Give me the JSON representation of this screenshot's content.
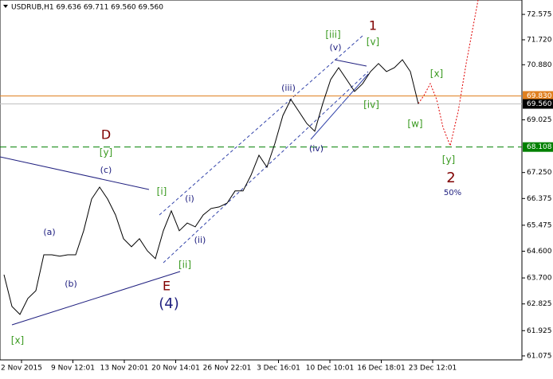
{
  "chart_data": {
    "type": "line",
    "title": "USDRUB,H1  69.636 69.711 69.560 69.560",
    "x_labels": [
      "2 Nov 2015",
      "9 Nov 12:01",
      "13 Nov 20:01",
      "20 Nov 14:01",
      "26 Nov 22:01",
      "3 Dec 16:01",
      "10 Dec 10:01",
      "16 Dec 18:01",
      "23 Dec 12:01"
    ],
    "values": [
      63.81,
      62.74,
      62.47,
      63.01,
      63.27,
      64.48,
      64.48,
      64.43,
      64.48,
      64.48,
      65.29,
      66.36,
      66.76,
      66.36,
      65.82,
      65.02,
      64.75,
      65.02,
      64.61,
      64.35,
      65.29,
      65.96,
      65.29,
      65.55,
      65.42,
      65.82,
      66.04,
      66.09,
      66.22,
      66.63,
      66.63,
      67.16,
      67.83,
      67.43,
      68.23,
      69.17,
      69.71,
      69.31,
      68.9,
      68.64,
      69.57,
      70.38,
      70.78,
      70.38,
      69.98,
      70.24,
      70.65,
      70.92,
      70.65,
      70.78,
      71.05,
      70.65,
      69.56
    ],
    "color": "#000000",
    "ylim": [
      60.94,
      73.06
    ],
    "yticks": [
      72.575,
      {
        "value": 71.72,
        "label": "71.720"
      },
      {
        "value": 70.88,
        "label": "70.880"
      },
      69.025,
      {
        "value": 67.25,
        "label": "67.250"
      },
      66.375,
      65.475,
      {
        "value": 64.6,
        "label": "64.600"
      },
      {
        "value": 63.7,
        "label": "63.700"
      },
      62.825,
      61.925,
      61.075
    ],
    "levels": [
      {
        "value": 69.83,
        "label": "69.830",
        "color": "#e08020"
      },
      {
        "value": 69.56,
        "label": "69.560",
        "color": "#000000"
      },
      {
        "value": 68.108,
        "label": "68.108",
        "color": "#008000"
      }
    ],
    "annotations": [
      "[iii]",
      "1",
      "[v]",
      "(v)",
      "(iii)",
      "[iv]",
      "[w]",
      "[x]",
      "(iv)",
      "D",
      "[y]",
      "(c)",
      "[i]",
      "(i)",
      "(ii)",
      "[ii]",
      "E",
      "(4)",
      "(a)",
      "(b)",
      "[x]",
      "[y]",
      "2",
      "50%"
    ]
  }
}
